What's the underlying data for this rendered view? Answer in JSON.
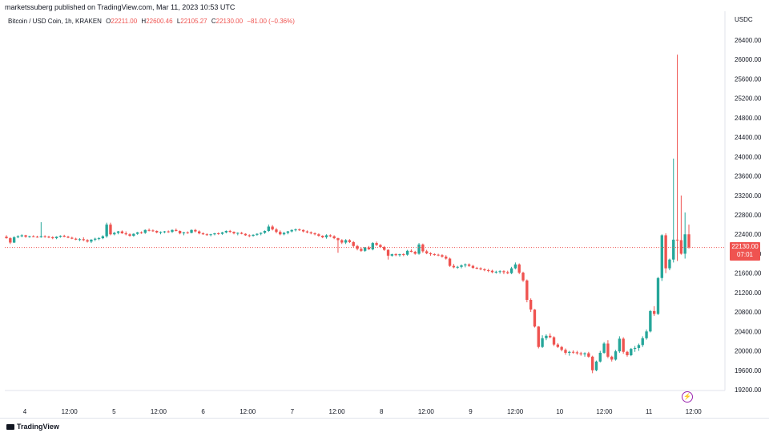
{
  "header": {
    "publisher": "marketssuberg published on TradingView.com, Mar 11, 2023 10:53 UTC"
  },
  "symbol": {
    "name": "Bitcoin / USD Coin, 1h, KRAKEN",
    "open_label": "O",
    "open": "22211.00",
    "high_label": "H",
    "high": "22600.46",
    "low_label": "L",
    "low": "22105.27",
    "close_label": "C",
    "close": "22130.00",
    "change": "−81.00 (−0.36%)"
  },
  "price_scale": {
    "currency": "USDC"
  },
  "last_price": {
    "value": "22130.00",
    "countdown": "07:01"
  },
  "footer": {
    "brand": "TradingView"
  },
  "colors": {
    "up": "#26a69a",
    "down": "#ef5350",
    "grid": "#f0f3fa",
    "text": "#131722"
  },
  "icons": {
    "flash": "lightning-icon",
    "logo": "tradingview-logo-icon"
  },
  "chart_data": {
    "type": "candlestick",
    "ylim": [
      19000,
      26800
    ],
    "y_ticks": [
      19200,
      19600,
      20000,
      20400,
      20800,
      21200,
      21600,
      22000,
      22400,
      22800,
      23200,
      23600,
      24000,
      24400,
      24800,
      25200,
      25600,
      26000,
      26400
    ],
    "y_tick_labels": [
      "19200.00",
      "19600.00",
      "20000.00",
      "20400.00",
      "20800.00",
      "21200.00",
      "21600.00",
      "22000.00",
      "22400.00",
      "22800.00",
      "23200.00",
      "23600.00",
      "24000.00",
      "24400.00",
      "24800.00",
      "25200.00",
      "25600.00",
      "26000.00",
      "26400.00"
    ],
    "x_ticks": [
      {
        "label": "4",
        "pos": 0.5
      },
      {
        "label": "12:00",
        "pos": 1
      },
      {
        "label": "5",
        "pos": 1.5
      },
      {
        "label": "12:00",
        "pos": 2
      },
      {
        "label": "6",
        "pos": 2.5
      },
      {
        "label": "12:00",
        "pos": 3
      },
      {
        "label": "7",
        "pos": 3.5
      },
      {
        "label": "12:00",
        "pos": 4
      },
      {
        "label": "8",
        "pos": 4.5
      },
      {
        "label": "12:00",
        "pos": 5
      },
      {
        "label": "9",
        "pos": 5.5
      },
      {
        "label": "12:00",
        "pos": 6
      },
      {
        "label": "10",
        "pos": 6.5
      },
      {
        "label": "12:00",
        "pos": 7
      },
      {
        "label": "11",
        "pos": 7.5
      },
      {
        "label": "12:00",
        "pos": 8
      }
    ],
    "last_price": 22130,
    "candles": [
      [
        22350,
        22380,
        22310,
        22320
      ],
      [
        22320,
        22340,
        22200,
        22230
      ],
      [
        22230,
        22360,
        22220,
        22340
      ],
      [
        22340,
        22380,
        22320,
        22360
      ],
      [
        22360,
        22400,
        22340,
        22380
      ],
      [
        22380,
        22390,
        22330,
        22350
      ],
      [
        22350,
        22370,
        22330,
        22360
      ],
      [
        22360,
        22380,
        22340,
        22350
      ],
      [
        22350,
        22370,
        22330,
        22340
      ],
      [
        22340,
        22650,
        22330,
        22360
      ],
      [
        22360,
        22380,
        22330,
        22350
      ],
      [
        22350,
        22370,
        22320,
        22340
      ],
      [
        22340,
        22360,
        22300,
        22320
      ],
      [
        22320,
        22360,
        22300,
        22350
      ],
      [
        22350,
        22380,
        22330,
        22370
      ],
      [
        22370,
        22390,
        22340,
        22350
      ],
      [
        22350,
        22370,
        22320,
        22330
      ],
      [
        22330,
        22350,
        22300,
        22310
      ],
      [
        22310,
        22330,
        22280,
        22290
      ],
      [
        22290,
        22320,
        22260,
        22300
      ],
      [
        22300,
        22340,
        22260,
        22280
      ],
      [
        22280,
        22300,
        22230,
        22250
      ],
      [
        22250,
        22300,
        22220,
        22290
      ],
      [
        22290,
        22330,
        22260,
        22310
      ],
      [
        22310,
        22340,
        22280,
        22320
      ],
      [
        22320,
        22380,
        22300,
        22360
      ],
      [
        22360,
        22640,
        22330,
        22600
      ],
      [
        22600,
        22640,
        22380,
        22400
      ],
      [
        22400,
        22450,
        22380,
        22430
      ],
      [
        22430,
        22470,
        22400,
        22460
      ],
      [
        22460,
        22480,
        22410,
        22420
      ],
      [
        22420,
        22460,
        22380,
        22400
      ],
      [
        22400,
        22420,
        22350,
        22370
      ],
      [
        22370,
        22420,
        22350,
        22410
      ],
      [
        22410,
        22450,
        22390,
        22440
      ],
      [
        22440,
        22460,
        22410,
        22430
      ],
      [
        22430,
        22500,
        22410,
        22490
      ],
      [
        22490,
        22520,
        22460,
        22480
      ],
      [
        22480,
        22500,
        22450,
        22470
      ],
      [
        22470,
        22480,
        22420,
        22440
      ],
      [
        22440,
        22460,
        22400,
        22450
      ],
      [
        22450,
        22470,
        22420,
        22460
      ],
      [
        22460,
        22480,
        22430,
        22450
      ],
      [
        22450,
        22500,
        22430,
        22490
      ],
      [
        22490,
        22520,
        22460,
        22470
      ],
      [
        22470,
        22480,
        22400,
        22420
      ],
      [
        22420,
        22450,
        22380,
        22440
      ],
      [
        22440,
        22460,
        22410,
        22430
      ],
      [
        22430,
        22500,
        22420,
        22490
      ],
      [
        22490,
        22510,
        22440,
        22460
      ],
      [
        22460,
        22480,
        22400,
        22420
      ],
      [
        22420,
        22440,
        22390,
        22400
      ],
      [
        22400,
        22420,
        22370,
        22390
      ],
      [
        22390,
        22410,
        22360,
        22400
      ],
      [
        22400,
        22430,
        22380,
        22420
      ],
      [
        22420,
        22440,
        22390,
        22410
      ],
      [
        22410,
        22450,
        22390,
        22440
      ],
      [
        22440,
        22480,
        22420,
        22470
      ],
      [
        22470,
        22490,
        22430,
        22450
      ],
      [
        22450,
        22460,
        22400,
        22420
      ],
      [
        22420,
        22440,
        22380,
        22430
      ],
      [
        22430,
        22450,
        22400,
        22410
      ],
      [
        22410,
        22420,
        22370,
        22380
      ],
      [
        22380,
        22400,
        22340,
        22370
      ],
      [
        22370,
        22400,
        22350,
        22390
      ],
      [
        22390,
        22420,
        22370,
        22410
      ],
      [
        22410,
        22440,
        22380,
        22430
      ],
      [
        22430,
        22480,
        22410,
        22470
      ],
      [
        22470,
        22600,
        22450,
        22560
      ],
      [
        22560,
        22590,
        22480,
        22500
      ],
      [
        22500,
        22530,
        22420,
        22450
      ],
      [
        22450,
        22480,
        22380,
        22400
      ],
      [
        22400,
        22450,
        22380,
        22430
      ],
      [
        22430,
        22470,
        22400,
        22460
      ],
      [
        22460,
        22500,
        22440,
        22490
      ],
      [
        22490,
        22520,
        22460,
        22500
      ],
      [
        22500,
        22520,
        22470,
        22490
      ],
      [
        22490,
        22500,
        22440,
        22460
      ],
      [
        22460,
        22480,
        22420,
        22440
      ],
      [
        22440,
        22460,
        22400,
        22420
      ],
      [
        22420,
        22440,
        22380,
        22400
      ],
      [
        22400,
        22420,
        22350,
        22370
      ],
      [
        22370,
        22380,
        22320,
        22340
      ],
      [
        22340,
        22400,
        22310,
        22380
      ],
      [
        22380,
        22400,
        22340,
        22360
      ],
      [
        22360,
        22380,
        22300,
        22320
      ],
      [
        22320,
        22330,
        22020,
        22280
      ],
      [
        22280,
        22300,
        22200,
        22230
      ],
      [
        22230,
        22300,
        22200,
        22280
      ],
      [
        22280,
        22300,
        22220,
        22240
      ],
      [
        22240,
        22260,
        22140,
        22160
      ],
      [
        22160,
        22180,
        22070,
        22100
      ],
      [
        22100,
        22130,
        22040,
        22060
      ],
      [
        22060,
        22140,
        22040,
        22130
      ],
      [
        22130,
        22160,
        22080,
        22090
      ],
      [
        22090,
        22240,
        22070,
        22220
      ],
      [
        22220,
        22250,
        22160,
        22180
      ],
      [
        22180,
        22200,
        22120,
        22140
      ],
      [
        22140,
        22160,
        22060,
        22080
      ],
      [
        22080,
        22090,
        21880,
        21960
      ],
      [
        21960,
        22000,
        21940,
        21990
      ],
      [
        21990,
        22010,
        21950,
        21970
      ],
      [
        21970,
        22000,
        21940,
        21990
      ],
      [
        21990,
        22010,
        21950,
        21980
      ],
      [
        21980,
        22080,
        21960,
        22060
      ],
      [
        22060,
        22090,
        22030,
        22040
      ],
      [
        22040,
        22060,
        21980,
        22000
      ],
      [
        22000,
        22220,
        21980,
        22190
      ],
      [
        22190,
        22210,
        22020,
        22050
      ],
      [
        22050,
        22080,
        21990,
        22010
      ],
      [
        22010,
        22030,
        21960,
        21990
      ],
      [
        21990,
        22010,
        21960,
        21980
      ],
      [
        21980,
        22000,
        21950,
        21970
      ],
      [
        21970,
        21990,
        21920,
        21940
      ],
      [
        21940,
        21970,
        21880,
        21900
      ],
      [
        21900,
        21920,
        21730,
        21750
      ],
      [
        21750,
        21790,
        21700,
        21720
      ],
      [
        21720,
        21750,
        21690,
        21730
      ],
      [
        21730,
        21780,
        21700,
        21760
      ],
      [
        21760,
        21800,
        21720,
        21780
      ],
      [
        21780,
        21800,
        21730,
        21750
      ],
      [
        21750,
        21770,
        21690,
        21710
      ],
      [
        21710,
        21730,
        21680,
        21700
      ],
      [
        21700,
        21720,
        21660,
        21680
      ],
      [
        21680,
        21700,
        21640,
        21660
      ],
      [
        21660,
        21690,
        21620,
        21650
      ],
      [
        21650,
        21670,
        21600,
        21620
      ],
      [
        21620,
        21650,
        21590,
        21630
      ],
      [
        21630,
        21660,
        21590,
        21640
      ],
      [
        21640,
        21660,
        21580,
        21620
      ],
      [
        21620,
        21650,
        21580,
        21600
      ],
      [
        21600,
        21730,
        21580,
        21700
      ],
      [
        21700,
        21820,
        21680,
        21780
      ],
      [
        21780,
        21800,
        21580,
        21610
      ],
      [
        21610,
        21630,
        21420,
        21450
      ],
      [
        21450,
        21470,
        21000,
        21050
      ],
      [
        21050,
        21080,
        20800,
        20850
      ],
      [
        20850,
        20860,
        20480,
        20500
      ],
      [
        20500,
        20510,
        20050,
        20080
      ],
      [
        20080,
        20320,
        20060,
        20260
      ],
      [
        20260,
        20340,
        20220,
        20310
      ],
      [
        20310,
        20360,
        20260,
        20280
      ],
      [
        20280,
        20300,
        20100,
        20130
      ],
      [
        20130,
        20160,
        20060,
        20080
      ],
      [
        20080,
        20100,
        19990,
        20020
      ],
      [
        20020,
        20050,
        19920,
        19960
      ],
      [
        19960,
        20000,
        19900,
        19980
      ],
      [
        19980,
        20010,
        19940,
        19970
      ],
      [
        19970,
        20000,
        19920,
        19950
      ],
      [
        19950,
        19980,
        19900,
        19930
      ],
      [
        19930,
        19970,
        19880,
        19950
      ],
      [
        19950,
        19980,
        19860,
        19880
      ],
      [
        19880,
        19900,
        19540,
        19600
      ],
      [
        19600,
        19800,
        19580,
        19780
      ],
      [
        19780,
        20000,
        19760,
        19960
      ],
      [
        19960,
        20180,
        19940,
        20150
      ],
      [
        20150,
        20220,
        19850,
        19880
      ],
      [
        19880,
        19900,
        19780,
        19820
      ],
      [
        19820,
        20020,
        19800,
        19990
      ],
      [
        19990,
        20300,
        19960,
        20250
      ],
      [
        20250,
        20280,
        19940,
        19980
      ],
      [
        19980,
        20000,
        19880,
        19910
      ],
      [
        19910,
        20060,
        19890,
        20040
      ],
      [
        20040,
        20100,
        19980,
        20060
      ],
      [
        20060,
        20150,
        20000,
        20120
      ],
      [
        20120,
        20300,
        20080,
        20260
      ],
      [
        20260,
        20440,
        20230,
        20400
      ],
      [
        20400,
        20840,
        20380,
        20820
      ],
      [
        20820,
        20920,
        20720,
        20760
      ],
      [
        20760,
        21520,
        20740,
        21500
      ],
      [
        21500,
        22400,
        21440,
        22380
      ],
      [
        22380,
        22420,
        21600,
        21700
      ],
      [
        21700,
        21900,
        21660,
        21880
      ],
      [
        21880,
        23960,
        21820,
        22290
      ],
      [
        22290,
        26100,
        21850,
        22280
      ],
      [
        22280,
        23200,
        21980,
        22000
      ],
      [
        22000,
        22850,
        21900,
        22400
      ],
      [
        22400,
        22600,
        22105,
        22130
      ]
    ]
  }
}
